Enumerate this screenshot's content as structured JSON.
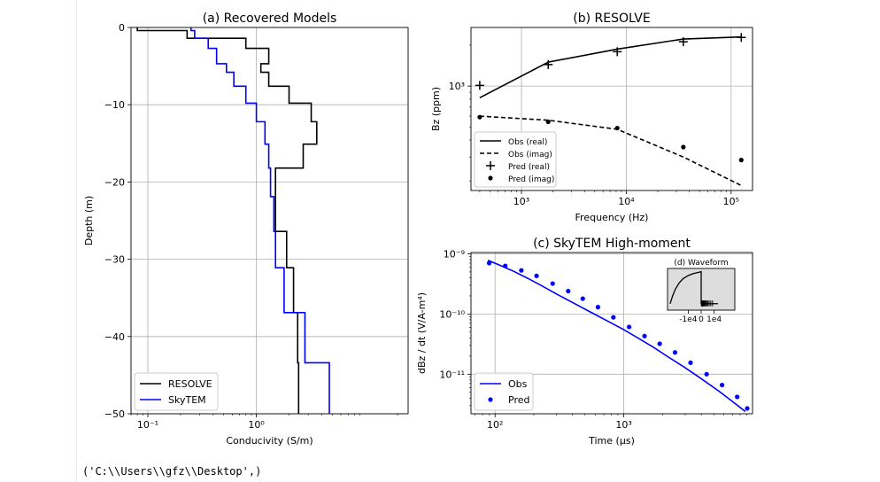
{
  "output_text": "('C:\\\\Users\\\\gfz\\\\Desktop',)",
  "chart_data": [
    {
      "id": "a",
      "type": "line",
      "title": "(a) Recovered Models",
      "xlabel": "Conducivity (S/m)",
      "ylabel": "Depth (m)",
      "xscale": "log",
      "xlim": [
        0.07,
        25
      ],
      "ylim": [
        -50,
        0
      ],
      "xticks": [
        {
          "v": 0.1,
          "label": "10⁻¹"
        },
        {
          "v": 1,
          "label": "10⁰"
        }
      ],
      "yticks": [
        {
          "v": 0,
          "label": "0"
        },
        {
          "v": -10,
          "label": "−10"
        },
        {
          "v": -20,
          "label": "−20"
        },
        {
          "v": -30,
          "label": "−30"
        },
        {
          "v": -40,
          "label": "−40"
        },
        {
          "v": -50,
          "label": "−50"
        }
      ],
      "grid": true,
      "legend": "lower-left",
      "series": [
        {
          "name": "RESOLVE",
          "color": "#000000",
          "step": true,
          "x": [
            0.08,
            0.23,
            0.8,
            1.3,
            1.1,
            1.3,
            2.0,
            3.2,
            3.6,
            2.7,
            1.5,
            1.9,
            2.2,
            2.4,
            2.45
          ],
          "y": [
            -0.4,
            -1.4,
            -2.7,
            -4.7,
            -5.8,
            -7.6,
            -9.8,
            -12.2,
            -15.1,
            -18.2,
            -26.4,
            -31.1,
            -36.9,
            -43.4,
            -50
          ]
        },
        {
          "name": "SkyTEM",
          "color": "#0000ff",
          "step": true,
          "x": [
            0.25,
            0.27,
            0.36,
            0.43,
            0.53,
            0.62,
            0.8,
            1.0,
            1.2,
            1.3,
            1.35,
            1.45,
            1.5,
            1.8,
            2.8,
            4.7
          ],
          "y": [
            -0.4,
            -1.4,
            -2.7,
            -4.7,
            -5.8,
            -7.6,
            -9.8,
            -12.2,
            -15.1,
            -18.2,
            -21.9,
            -26.4,
            -31.1,
            -36.9,
            -43.4,
            -50
          ]
        }
      ]
    },
    {
      "id": "b",
      "type": "line",
      "title": "(b) RESOLVE",
      "xlabel": "Frequency (Hz)",
      "ylabel": "Bz (ppm)",
      "xscale": "log",
      "yscale": "log",
      "xlim": [
        330,
        160000
      ],
      "ylim": [
        170,
        2700
      ],
      "xticks": [
        {
          "v": 1000,
          "label": "10³"
        },
        {
          "v": 10000,
          "label": "10⁴"
        },
        {
          "v": 100000,
          "label": "10⁵"
        }
      ],
      "yticks": [
        {
          "v": 1000,
          "label": "10³"
        }
      ],
      "grid": true,
      "legend": "lower-left",
      "series": [
        {
          "name": "Obs (real)",
          "color": "#000000",
          "style": "solid",
          "x": [
            400,
            1800,
            8200,
            35000,
            125000
          ],
          "y": [
            820,
            1500,
            1870,
            2220,
            2300
          ]
        },
        {
          "name": "Obs (imag)",
          "color": "#000000",
          "style": "dashed",
          "x": [
            400,
            1800,
            8200,
            35000,
            125000
          ],
          "y": [
            600,
            560,
            480,
            300,
            185
          ]
        },
        {
          "name": "Pred (real)",
          "color": "#000000",
          "marker": "plus",
          "x": [
            400,
            1800,
            8200,
            35000,
            125000
          ],
          "y": [
            1010,
            1440,
            1790,
            2120,
            2280
          ]
        },
        {
          "name": "Pred (imag)",
          "color": "#000000",
          "marker": "dot",
          "x": [
            400,
            1800,
            8200,
            35000,
            125000
          ],
          "y": [
            590,
            545,
            490,
            355,
            285
          ]
        }
      ]
    },
    {
      "id": "c",
      "type": "line",
      "title": "(c) SkyTEM High-moment",
      "xlabel": "Time (μs)",
      "ylabel": "dBz / dt (V/A-m⁴)",
      "xscale": "log",
      "yscale": "log",
      "xlim": [
        65,
        10000
      ],
      "ylim": [
        2.2e-12,
        1.05e-09
      ],
      "xticks": [
        {
          "v": 100,
          "label": "10²"
        },
        {
          "v": 1000,
          "label": "10³"
        }
      ],
      "yticks": [
        {
          "v": 1e-09,
          "label": "10⁻⁹"
        },
        {
          "v": 1e-10,
          "label": "10⁻¹⁰"
        },
        {
          "v": 1e-11,
          "label": "10⁻¹¹"
        }
      ],
      "grid": true,
      "legend": "lower-left",
      "series": [
        {
          "name": "Obs",
          "color": "#0000ff",
          "style": "solid",
          "x": [
            88,
            110,
            140,
            180,
            230,
            300,
            400,
            550,
            750,
            1000,
            1300,
            1700,
            2200,
            3000,
            4000,
            5500,
            7000,
            8800
          ],
          "y": [
            7.8e-10,
            6.4e-10,
            5.1e-10,
            3.9e-10,
            2.95e-10,
            2.15e-10,
            1.55e-10,
            1.08e-10,
            7.6e-11,
            5.5e-11,
            3.95e-11,
            2.8e-11,
            1.95e-11,
            1.28e-11,
            8.4e-12,
            5.2e-12,
            3.5e-12,
            2.4e-12
          ]
        },
        {
          "name": "Pred",
          "color": "#0000ff",
          "marker": "dot",
          "x": [
            90,
            120,
            160,
            210,
            280,
            370,
            480,
            630,
            830,
            1100,
            1450,
            1900,
            2500,
            3300,
            4400,
            5800,
            7600,
            9100
          ],
          "y": [
            7e-10,
            6.3e-10,
            5.3e-10,
            4.3e-10,
            3.2e-10,
            2.4e-10,
            1.8e-10,
            1.3e-10,
            8.8e-11,
            6.1e-11,
            4.3e-11,
            3.2e-11,
            2.3e-11,
            1.55e-11,
            1e-11,
            6.6e-12,
            4.2e-12,
            2.7e-12
          ]
        }
      ]
    },
    {
      "id": "d",
      "type": "line",
      "title": "(d) Waveform",
      "xlim": [
        -26000,
        26000
      ],
      "ylim": [
        -0.2,
        1.1
      ],
      "xticks": [
        {
          "v": -10000,
          "label": "-1e4"
        },
        {
          "v": 0,
          "label": "0"
        },
        {
          "v": 10000,
          "label": "1e4"
        }
      ],
      "grid": false,
      "series": [
        {
          "name": "",
          "color": "#000000",
          "style": "solid",
          "x": [
            -24000,
            -22000,
            -20000,
            -17000,
            -14000,
            -10000,
            -6000,
            -2000,
            0,
            0,
            13000
          ],
          "y": [
            0,
            0.25,
            0.45,
            0.65,
            0.78,
            0.88,
            0.94,
            0.98,
            1.0,
            0,
            0
          ]
        }
      ],
      "gates": [
        200,
        400,
        600,
        800,
        1000,
        1300,
        1600,
        2000,
        2500,
        3000,
        3600,
        4300,
        5200,
        6200,
        7400,
        8800
      ]
    }
  ]
}
